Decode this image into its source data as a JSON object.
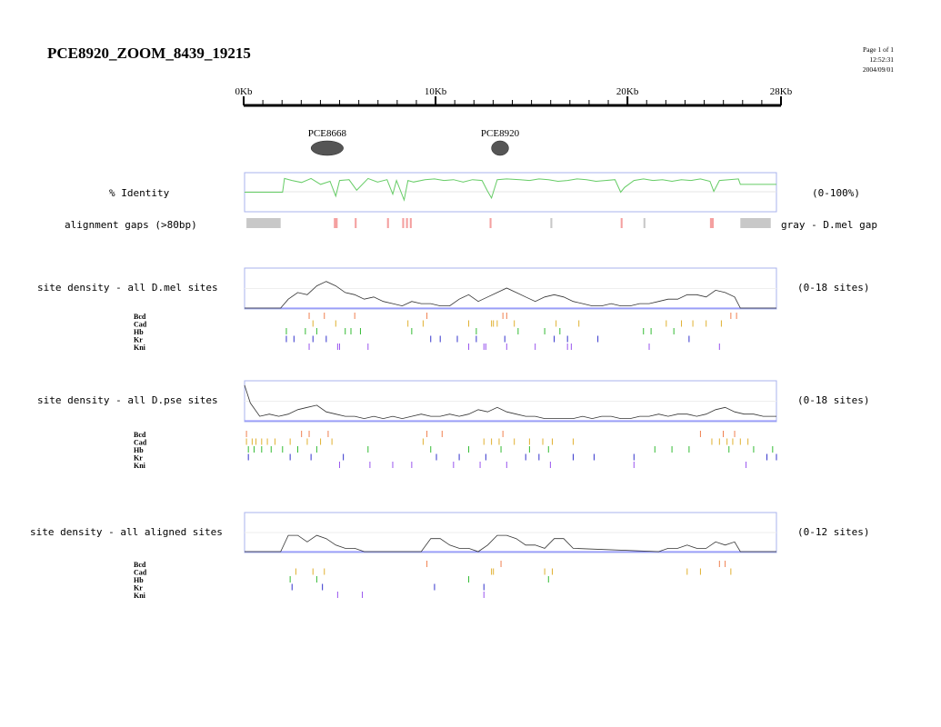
{
  "header": {
    "title": "PCE8920_ZOOM_8439_19215",
    "page": "Page 1 of 1",
    "time": "12:52:31",
    "date": "2004/09/01"
  },
  "ruler": {
    "labels": [
      "0Kb",
      "10Kb",
      "20Kb",
      "28Kb"
    ],
    "label_values": [
      0,
      10,
      20,
      28
    ],
    "max_kb": 28
  },
  "elements": [
    {
      "name": "PCE8668",
      "start_kb": 3.5,
      "end_kb": 5.2
    },
    {
      "name": "PCE8920",
      "start_kb": 13.0,
      "end_kb": 13.9
    }
  ],
  "identity_track": {
    "label": "% Identity",
    "range_label": "(0-100%)",
    "color": "#66cc66",
    "y_range": [
      0,
      100
    ]
  },
  "gaps_track": {
    "label": "alignment gaps (>80bp)",
    "legend": "gray - D.mel gap",
    "gray_color": "#c8c8c8",
    "red_color": "#f4a0a0",
    "gray_gaps": [
      [
        0.1,
        1.9
      ],
      [
        16.1,
        16.2
      ],
      [
        21.0,
        21.1
      ],
      [
        26.1,
        27.7
      ]
    ],
    "red_gaps": [
      [
        4.7,
        4.9
      ],
      [
        5.8,
        5.9
      ],
      [
        7.5,
        7.6
      ],
      [
        8.3,
        8.4
      ],
      [
        8.5,
        8.6
      ],
      [
        8.7,
        8.8
      ],
      [
        12.9,
        13.0
      ],
      [
        19.8,
        19.9
      ],
      [
        24.5,
        24.7
      ]
    ]
  },
  "factor_colors": {
    "Bcd": "#f08050",
    "Cad": "#e0b030",
    "Hb": "#33bb33",
    "Kr": "#3333cc",
    "Kni": "#9955ee"
  },
  "chart_data": [
    {
      "type": "line",
      "title": "% Identity",
      "range_label": "(0-100%)",
      "y_range": [
        0,
        100
      ],
      "x": [
        0,
        2.0,
        2.1,
        2.5,
        3.0,
        3.5,
        4.0,
        4.5,
        4.8,
        5.0,
        5.5,
        5.9,
        6.5,
        7.0,
        7.5,
        7.8,
        8.0,
        8.4,
        8.6,
        8.9,
        9.5,
        10.0,
        10.5,
        11.0,
        11.5,
        12.0,
        12.5,
        12.8,
        13.0,
        13.3,
        13.8,
        14.5,
        15.0,
        15.5,
        16.0,
        16.5,
        17.0,
        17.5,
        18.0,
        18.5,
        19.0,
        19.5,
        19.8,
        20.0,
        20.5,
        21.0,
        21.5,
        22.0,
        22.5,
        23.0,
        23.5,
        24.0,
        24.5,
        24.7,
        25.0,
        25.5,
        26.0,
        26.1,
        28.0
      ],
      "y": [
        50,
        50,
        85,
        80,
        75,
        85,
        70,
        78,
        40,
        80,
        82,
        55,
        85,
        76,
        82,
        45,
        80,
        30,
        80,
        76,
        82,
        84,
        80,
        82,
        76,
        82,
        80,
        52,
        35,
        82,
        84,
        82,
        80,
        84,
        82,
        78,
        80,
        84,
        82,
        78,
        80,
        82,
        50,
        62,
        80,
        84,
        80,
        82,
        78,
        82,
        80,
        84,
        78,
        52,
        80,
        82,
        84,
        70,
        70
      ]
    },
    {
      "type": "line",
      "title": "site density - all D.mel sites",
      "range_label": "(0-18 sites)",
      "y_range": [
        0,
        18
      ],
      "x": [
        0,
        1.9,
        2.3,
        2.8,
        3.3,
        3.8,
        4.3,
        4.8,
        5.3,
        5.8,
        6.3,
        6.8,
        7.3,
        7.8,
        8.3,
        8.8,
        9.3,
        9.8,
        10.3,
        10.8,
        11.3,
        11.8,
        12.3,
        12.8,
        13.3,
        13.8,
        14.3,
        14.8,
        15.3,
        15.8,
        16.3,
        16.8,
        17.3,
        17.8,
        18.3,
        18.8,
        19.3,
        19.8,
        20.3,
        20.8,
        21.3,
        21.8,
        22.3,
        22.8,
        23.3,
        23.8,
        24.3,
        24.8,
        25.3,
        25.8,
        26.1,
        28.0
      ],
      "y": [
        0,
        0,
        4,
        7,
        6,
        10,
        12,
        10,
        7,
        6,
        4,
        5,
        3,
        2,
        1,
        3,
        2,
        2,
        1,
        1,
        4,
        6,
        3,
        5,
        7,
        9,
        7,
        5,
        3,
        5,
        6,
        5,
        3,
        2,
        1,
        1,
        2,
        1,
        1,
        2,
        2,
        3,
        4,
        4,
        6,
        6,
        5,
        8,
        7,
        5,
        0,
        0
      ]
    },
    {
      "type": "line",
      "title": "site density - all D.pse sites",
      "range_label": "(0-18 sites)",
      "y_range": [
        0,
        18
      ],
      "x": [
        0,
        0.3,
        0.8,
        1.3,
        1.8,
        2.3,
        2.8,
        3.3,
        3.8,
        4.3,
        4.8,
        5.3,
        5.8,
        6.3,
        6.8,
        7.3,
        7.8,
        8.3,
        8.8,
        9.3,
        9.8,
        10.3,
        10.8,
        11.3,
        11.8,
        12.3,
        12.8,
        13.3,
        13.8,
        14.3,
        14.8,
        15.3,
        15.8,
        16.3,
        16.8,
        17.3,
        17.8,
        18.3,
        18.8,
        19.3,
        19.8,
        20.3,
        20.8,
        21.3,
        21.8,
        22.3,
        22.8,
        23.3,
        23.8,
        24.3,
        24.8,
        25.3,
        25.8,
        26.3,
        26.8,
        27.3,
        28.0
      ],
      "y": [
        16,
        8,
        2,
        3,
        2,
        3,
        5,
        6,
        7,
        4,
        3,
        2,
        2,
        1,
        2,
        1,
        2,
        1,
        2,
        3,
        2,
        2,
        3,
        2,
        3,
        5,
        4,
        6,
        4,
        3,
        2,
        2,
        1,
        1,
        1,
        1,
        2,
        1,
        2,
        2,
        1,
        1,
        2,
        2,
        3,
        2,
        3,
        3,
        2,
        3,
        5,
        6,
        4,
        3,
        3,
        2,
        2
      ]
    },
    {
      "type": "line",
      "title": "site density - all aligned sites",
      "range_label": "(0-12 sites)",
      "y_range": [
        0,
        12
      ],
      "x": [
        0,
        1.9,
        2.3,
        2.8,
        3.3,
        3.8,
        4.3,
        4.8,
        5.3,
        5.8,
        6.3,
        8.8,
        9.3,
        9.8,
        10.3,
        10.8,
        11.3,
        11.8,
        12.3,
        12.8,
        13.3,
        13.8,
        14.3,
        14.8,
        15.3,
        15.8,
        16.3,
        16.8,
        17.3,
        21.8,
        22.3,
        22.8,
        23.3,
        23.8,
        24.3,
        24.8,
        25.3,
        25.8,
        26.1,
        28.0
      ],
      "y": [
        0,
        0,
        5,
        5,
        3,
        5,
        4,
        2,
        1,
        1,
        0,
        0,
        0,
        4,
        4,
        2,
        1,
        1,
        0,
        2,
        5,
        5,
        4,
        2,
        2,
        1,
        4,
        4,
        1,
        0,
        1,
        1,
        2,
        1,
        1,
        3,
        2,
        3,
        0,
        0
      ]
    }
  ],
  "sections": [
    {
      "label": "site density - all D.mel sites",
      "range_label": "(0-18 sites)",
      "sites": {
        "Bcd": [
          3.4,
          4.2,
          5.8,
          9.6,
          13.6,
          13.8,
          25.6,
          25.9
        ],
        "Cad": [
          3.6,
          4.8,
          8.6,
          9.4,
          11.8,
          13.0,
          13.1,
          13.3,
          14.2,
          16.4,
          17.6,
          22.2,
          23.0,
          23.6,
          24.3,
          25.1
        ],
        "Hb": [
          2.2,
          3.2,
          3.8,
          5.3,
          5.6,
          6.1,
          8.8,
          12.2,
          14.4,
          15.8,
          16.6,
          21.0,
          21.4,
          22.6
        ],
        "Kr": [
          2.2,
          2.6,
          3.6,
          4.3,
          9.8,
          10.3,
          11.2,
          12.2,
          13.7,
          16.3,
          17.0,
          18.6,
          23.4
        ],
        "Kni": [
          3.4,
          4.9,
          5.0,
          6.5,
          11.8,
          12.6,
          12.7,
          13.8,
          15.3,
          17.0,
          17.2,
          21.3,
          25.0
        ]
      }
    },
    {
      "label": "site density - all D.pse sites",
      "range_label": "(0-18 sites)",
      "sites": {
        "Bcd": [
          0.1,
          3.0,
          3.4,
          4.4,
          9.6,
          10.4,
          13.6,
          24.0,
          25.2,
          25.8
        ],
        "Cad": [
          0.1,
          0.4,
          0.6,
          0.9,
          1.2,
          1.6,
          2.4,
          3.3,
          4.0,
          4.6,
          9.4,
          12.6,
          13.0,
          13.4,
          14.2,
          15.0,
          15.7,
          16.2,
          17.3,
          24.6,
          25.0,
          25.4,
          25.7,
          26.1,
          26.5
        ],
        "Hb": [
          0.2,
          0.5,
          0.9,
          1.4,
          2.0,
          2.8,
          3.8,
          6.5,
          9.8,
          11.8,
          13.5,
          15.0,
          16.0,
          21.6,
          22.5,
          23.4,
          25.5,
          26.8,
          27.8
        ],
        "Kr": [
          0.2,
          2.4,
          3.5,
          5.2,
          10.1,
          11.3,
          12.7,
          14.8,
          15.5,
          17.3,
          18.4,
          20.5,
          27.5,
          28.0
        ],
        "Kni": [
          5.0,
          6.6,
          7.8,
          8.8,
          11.0,
          12.4,
          13.8,
          16.1,
          20.5,
          26.4
        ]
      }
    },
    {
      "label": "site density - all aligned sites",
      "range_label": "(0-12 sites)",
      "sites": {
        "Bcd": [
          9.6,
          13.5,
          25.0,
          25.3
        ],
        "Cad": [
          2.7,
          3.6,
          4.2,
          13.0,
          13.1,
          15.8,
          16.2,
          23.3,
          24.0,
          25.6
        ],
        "Hb": [
          2.4,
          3.8,
          11.8,
          16.0
        ],
        "Kr": [
          2.5,
          4.1,
          10.0,
          12.6
        ],
        "Kni": [
          4.9,
          6.2,
          12.6
        ]
      }
    }
  ]
}
